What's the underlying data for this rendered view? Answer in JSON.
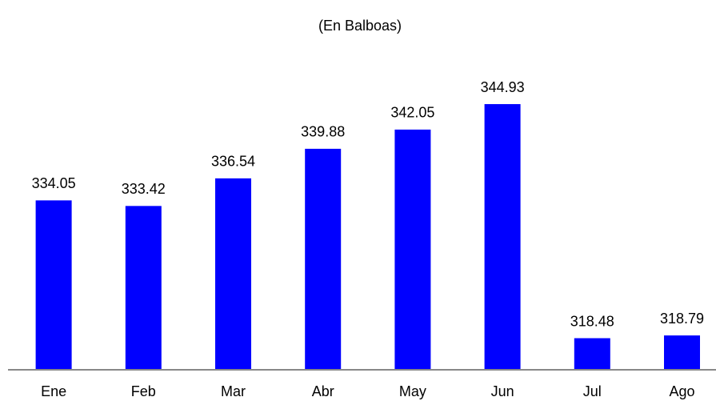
{
  "chart_data": {
    "type": "bar",
    "title": "(En Balboas)",
    "categories": [
      "Ene",
      "Feb",
      "Mar",
      "Abr",
      "May",
      "Jun",
      "Jul",
      "Ago"
    ],
    "values": [
      334.05,
      333.42,
      336.54,
      339.88,
      342.05,
      344.93,
      318.48,
      318.79
    ],
    "color": "#0000ff",
    "ylim": [
      315,
      350
    ]
  }
}
